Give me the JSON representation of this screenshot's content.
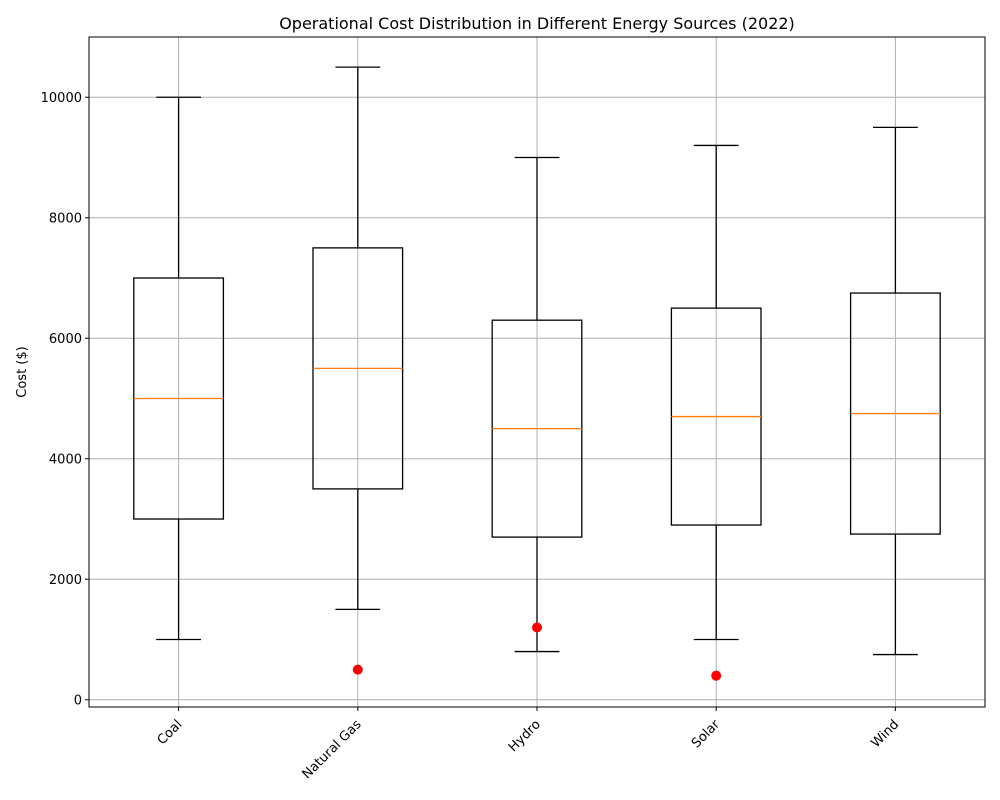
{
  "chart_data": {
    "type": "box",
    "title": "Operational Cost Distribution in Different Energy Sources (2022)",
    "xlabel": "",
    "ylabel": "Cost ($)",
    "ylim": [
      -120,
      11000
    ],
    "yticks": [
      0,
      2000,
      4000,
      6000,
      8000,
      10000
    ],
    "grid": true,
    "categories": [
      "Coal",
      "Natural Gas",
      "Hydro",
      "Solar",
      "Wind"
    ],
    "boxes": [
      {
        "category": "Coal",
        "min": 1000,
        "q1": 3000,
        "median": 5000,
        "q3": 7000,
        "max": 10000,
        "outliers": []
      },
      {
        "category": "Natural Gas",
        "min": 1500,
        "q1": 3500,
        "median": 5500,
        "q3": 7500,
        "max": 10500,
        "outliers": [
          500
        ]
      },
      {
        "category": "Hydro",
        "min": 800,
        "q1": 2700,
        "median": 4500,
        "q3": 6300,
        "max": 9000,
        "outliers": [
          1200
        ]
      },
      {
        "category": "Solar",
        "min": 1000,
        "q1": 2900,
        "median": 4700,
        "q3": 6500,
        "max": 9200,
        "outliers": [
          400
        ]
      },
      {
        "category": "Wind",
        "min": 750,
        "q1": 2750,
        "median": 4750,
        "q3": 6750,
        "max": 9500,
        "outliers": []
      }
    ],
    "colors": {
      "box": "#000000",
      "median": "#ff7f0e",
      "outlier": "#ff0000",
      "grid": "#b0b0b0"
    }
  }
}
